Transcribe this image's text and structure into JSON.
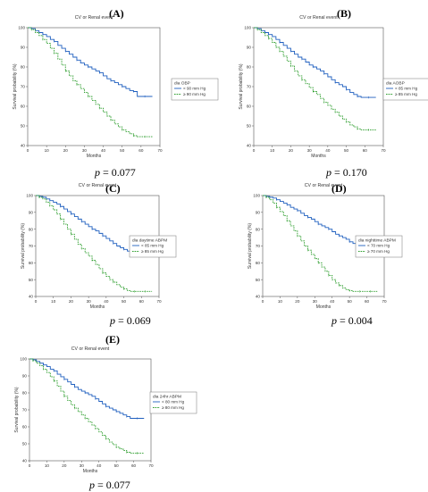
{
  "chart_data": [
    {
      "panel_label": "(A)",
      "type": "line",
      "title": "CV or Renal event",
      "xlabel": "Months",
      "ylabel": "Survival probability (%)",
      "xlim": [
        0,
        70
      ],
      "ylim": [
        40,
        100
      ],
      "xticks": [
        0,
        10,
        20,
        30,
        40,
        50,
        60,
        70
      ],
      "yticks": [
        40,
        50,
        60,
        70,
        80,
        90,
        100
      ],
      "legend_title": "dia OBP",
      "legend_position": "right",
      "p_label": "p",
      "p_value": "= 0.077",
      "series": [
        {
          "name": "< 90 mm Hg",
          "color": "#1f5fbf",
          "x": [
            0,
            2,
            4,
            6,
            8,
            10,
            12,
            14,
            16,
            18,
            20,
            22,
            24,
            26,
            28,
            30,
            32,
            34,
            36,
            38,
            40,
            42,
            44,
            46,
            48,
            50,
            52,
            54,
            56,
            58,
            60,
            62,
            66
          ],
          "y": [
            100,
            99.5,
            98.5,
            97.5,
            96.5,
            95.5,
            94,
            93,
            91,
            89.5,
            88,
            86.5,
            85,
            83.5,
            82,
            81,
            80,
            79,
            78,
            77,
            75.5,
            74,
            73,
            72,
            71,
            70,
            69,
            68,
            67.5,
            65,
            65,
            65,
            65
          ]
        },
        {
          "name": "≥ 90 mm Hg",
          "color": "#2e9e2e",
          "x": [
            0,
            2,
            4,
            6,
            8,
            10,
            12,
            14,
            16,
            18,
            20,
            22,
            24,
            26,
            28,
            30,
            32,
            34,
            36,
            38,
            40,
            42,
            44,
            46,
            48,
            50,
            52,
            54,
            56,
            58,
            60,
            62,
            66
          ],
          "y": [
            100,
            99,
            97.5,
            96,
            94,
            92,
            89.5,
            87,
            84,
            81,
            78,
            75.5,
            73,
            71,
            69,
            67,
            65,
            63,
            61,
            59,
            57,
            55,
            53,
            51,
            49.5,
            48,
            47,
            46,
            45,
            44.5,
            44.5,
            44.5,
            44.5
          ]
        }
      ]
    },
    {
      "panel_label": "(B)",
      "type": "line",
      "title": "CV or Renal event",
      "xlabel": "Months",
      "ylabel": "Survival probability (%)",
      "xlim": [
        0,
        70
      ],
      "ylim": [
        40,
        100
      ],
      "xticks": [
        0,
        10,
        20,
        30,
        40,
        50,
        60,
        70
      ],
      "yticks": [
        40,
        50,
        60,
        70,
        80,
        90,
        100
      ],
      "legend_title": "dia AOBP",
      "legend_position": "right",
      "p_label": "p",
      "p_value": "= 0.170",
      "series": [
        {
          "name": "< 85 mm Hg",
          "color": "#1f5fbf",
          "x": [
            0,
            2,
            4,
            6,
            8,
            10,
            12,
            14,
            16,
            18,
            20,
            22,
            24,
            26,
            28,
            30,
            32,
            34,
            36,
            38,
            40,
            42,
            44,
            46,
            48,
            50,
            52,
            54,
            56,
            58,
            60,
            62,
            66
          ],
          "y": [
            100,
            99.5,
            98.5,
            97.5,
            96.5,
            95.5,
            94,
            92.5,
            91,
            89.5,
            88,
            86.5,
            85,
            84,
            82.5,
            81,
            80,
            79,
            78,
            76.5,
            75,
            73.5,
            72,
            71,
            70,
            68.5,
            67,
            66,
            65,
            64.5,
            64.5,
            64.5,
            64.5
          ]
        },
        {
          "name": "≥ 85 mm Hg",
          "color": "#2e9e2e",
          "x": [
            0,
            2,
            4,
            6,
            8,
            10,
            12,
            14,
            16,
            18,
            20,
            22,
            24,
            26,
            28,
            30,
            32,
            34,
            36,
            38,
            40,
            42,
            44,
            46,
            48,
            50,
            52,
            54,
            56,
            58,
            60,
            62,
            66
          ],
          "y": [
            100,
            99,
            97.5,
            96,
            94.5,
            92.5,
            90,
            88,
            85.5,
            83,
            80.5,
            78,
            75.5,
            73.5,
            71.5,
            69.5,
            67.5,
            66,
            64,
            62,
            60.5,
            58.5,
            57,
            55,
            53.5,
            52,
            50.5,
            49.5,
            48.5,
            48,
            48,
            48,
            48
          ]
        }
      ]
    },
    {
      "panel_label": "(C)",
      "type": "line",
      "title": "CV or Renal event",
      "xlabel": "Months",
      "ylabel": "Survival probability (%)",
      "xlim": [
        0,
        70
      ],
      "ylim": [
        40,
        100
      ],
      "xticks": [
        0,
        10,
        20,
        30,
        40,
        50,
        60,
        70
      ],
      "yticks": [
        40,
        50,
        60,
        70,
        80,
        90,
        100
      ],
      "legend_title": "dia daytime ABPM",
      "legend_position": "right",
      "p_label": "p",
      "p_value": "= 0.069",
      "series": [
        {
          "name": "< 85 mm Hg",
          "color": "#1f5fbf",
          "x": [
            0,
            2,
            4,
            6,
            8,
            10,
            12,
            14,
            16,
            18,
            20,
            22,
            24,
            26,
            28,
            30,
            32,
            34,
            36,
            38,
            40,
            42,
            44,
            46,
            48,
            50,
            52,
            54,
            56,
            58,
            60,
            62,
            66
          ],
          "y": [
            100,
            99.5,
            99,
            98,
            97,
            96,
            95,
            93.5,
            92,
            90.5,
            89,
            87.5,
            86,
            84.5,
            83,
            81.5,
            80,
            79,
            77.5,
            76,
            74.5,
            73,
            71.5,
            70,
            69,
            68,
            67,
            66,
            65,
            64,
            64,
            64,
            64
          ]
        },
        {
          "name": "≥ 85 mm Hg",
          "color": "#2e9e2e",
          "x": [
            0,
            2,
            4,
            6,
            8,
            10,
            12,
            14,
            16,
            18,
            20,
            22,
            24,
            26,
            28,
            30,
            32,
            34,
            36,
            38,
            40,
            42,
            44,
            46,
            48,
            50,
            52,
            54,
            56,
            58,
            60,
            62,
            66
          ],
          "y": [
            100,
            99,
            98,
            96,
            94,
            91.5,
            89,
            86,
            83,
            80,
            77,
            74,
            71,
            68.5,
            66,
            64,
            61.5,
            59,
            56.5,
            54,
            52,
            50,
            48.5,
            47,
            45.5,
            44.5,
            43.5,
            43,
            43,
            43,
            43,
            43,
            43
          ]
        }
      ]
    },
    {
      "panel_label": "(D)",
      "type": "line",
      "title": "CV or Renal event",
      "xlabel": "Months",
      "ylabel": "Survival probability (%)",
      "xlim": [
        0,
        70
      ],
      "ylim": [
        40,
        100
      ],
      "xticks": [
        0,
        10,
        20,
        30,
        40,
        50,
        60,
        70
      ],
      "yticks": [
        40,
        50,
        60,
        70,
        80,
        90,
        100
      ],
      "legend_title": "dia nighttime ABPM",
      "legend_position": "right",
      "p_label": "p",
      "p_value": "= 0.004",
      "series": [
        {
          "name": "< 70 mm Hg",
          "color": "#1f5fbf",
          "x": [
            0,
            2,
            4,
            6,
            8,
            10,
            12,
            14,
            16,
            18,
            20,
            22,
            24,
            26,
            28,
            30,
            32,
            34,
            36,
            38,
            40,
            42,
            44,
            46,
            48,
            50,
            52,
            54,
            56,
            58,
            60,
            62,
            66
          ],
          "y": [
            100,
            99.5,
            99,
            98.5,
            97.5,
            96.5,
            95.5,
            94.5,
            93,
            92,
            91,
            89.5,
            88,
            87,
            86,
            84.5,
            83,
            82,
            81,
            80,
            78.5,
            77,
            76,
            75,
            74,
            72.5,
            71.5,
            70.5,
            69.5,
            69,
            69,
            69,
            69
          ]
        },
        {
          "name": "≥ 70 mm Hg",
          "color": "#2e9e2e",
          "x": [
            0,
            2,
            4,
            6,
            8,
            10,
            12,
            14,
            16,
            18,
            20,
            22,
            24,
            26,
            28,
            30,
            32,
            34,
            36,
            38,
            40,
            42,
            44,
            46,
            48,
            50,
            52,
            54,
            56,
            58,
            60,
            62,
            66
          ],
          "y": [
            100,
            99,
            97.5,
            95.5,
            93,
            90.5,
            88,
            85,
            82,
            79,
            76,
            73,
            70,
            67.5,
            65,
            62.5,
            60,
            57.5,
            55,
            52.5,
            50,
            48,
            46.5,
            45,
            44,
            43.5,
            43,
            43,
            43,
            43,
            43,
            43,
            43
          ]
        }
      ]
    },
    {
      "panel_label": "(E)",
      "type": "line",
      "title": "CV or Renal event",
      "xlabel": "Months",
      "ylabel": "Survival probability (%)",
      "xlim": [
        0,
        70
      ],
      "ylim": [
        40,
        100
      ],
      "xticks": [
        0,
        10,
        20,
        30,
        40,
        50,
        60,
        70
      ],
      "yticks": [
        40,
        50,
        60,
        70,
        80,
        90,
        100
      ],
      "legend_title": "dia 24hr ABPM",
      "legend_position": "right",
      "p_label": "p",
      "p_value": "= 0.077",
      "series": [
        {
          "name": "< 80 mm Hg",
          "color": "#1f5fbf",
          "x": [
            0,
            2,
            4,
            6,
            8,
            10,
            12,
            14,
            16,
            18,
            20,
            22,
            24,
            26,
            28,
            30,
            32,
            34,
            36,
            38,
            40,
            42,
            44,
            46,
            48,
            50,
            52,
            54,
            56,
            58,
            60,
            62,
            66
          ],
          "y": [
            100,
            99.5,
            98.5,
            97.5,
            96.5,
            95.5,
            94,
            93,
            91,
            89.5,
            88,
            86.5,
            85,
            83.5,
            82,
            81,
            80,
            79,
            78,
            76.5,
            75,
            73.5,
            72,
            71,
            70,
            69,
            68,
            67,
            66,
            65,
            65,
            65,
            65
          ]
        },
        {
          "name": "≥ 80 mm Hg",
          "color": "#2e9e2e",
          "x": [
            0,
            2,
            4,
            6,
            8,
            10,
            12,
            14,
            16,
            18,
            20,
            22,
            24,
            26,
            28,
            30,
            32,
            34,
            36,
            38,
            40,
            42,
            44,
            46,
            48,
            50,
            52,
            54,
            56,
            58,
            60,
            62,
            66
          ],
          "y": [
            100,
            99,
            97.5,
            96,
            94,
            92,
            89.5,
            87,
            84,
            81,
            78,
            75.5,
            73,
            71,
            69,
            67,
            65,
            63,
            61,
            59,
            57,
            55,
            53,
            51,
            49.5,
            48,
            47,
            46,
            45,
            44.5,
            44.5,
            44.5,
            44.5
          ]
        }
      ]
    }
  ]
}
